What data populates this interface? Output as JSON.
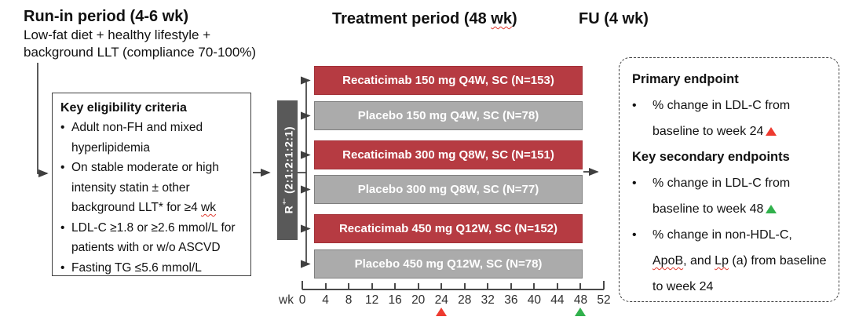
{
  "figure": {
    "runin": {
      "title": "Run-in period (4-6 wk)",
      "line1": "Low-fat diet + healthy lifestyle +",
      "line2": "background LLT (compliance 70-100%)"
    },
    "treatment_title_segments": [
      {
        "t": "Treatment period (48 "
      },
      {
        "t": "wk",
        "wavy": true
      },
      {
        "t": ")"
      }
    ],
    "fu_title": "FU (4 wk)"
  },
  "eligibility": {
    "title": "Key eligibility criteria",
    "bullets": [
      [
        {
          "t": "Adult non-FH and mixed hyperlipidemia"
        }
      ],
      [
        {
          "t": "On stable moderate or high intensity statin ± other background LLT* for ≥4 "
        },
        {
          "t": "wk",
          "wavy": true
        }
      ],
      [
        {
          "t": "LDL-C ≥1.8 or ≥2.6 mmol/L for patients with or w/o ASCVD"
        }
      ],
      [
        {
          "t": "Fasting TG ≤5.6 mmol/L"
        }
      ]
    ]
  },
  "randomization": {
    "prefix": "R",
    "sup": "†",
    "ratio": " (2:1:2:1:2:1)"
  },
  "arms": [
    {
      "label": "Recaticimab 150 mg Q4W, SC (N=153)",
      "type": "active"
    },
    {
      "label": "Placebo 150 mg Q4W, SC (N=78)",
      "type": "placebo"
    },
    {
      "label": "Recaticimab 300 mg Q8W, SC (N=151)",
      "type": "active"
    },
    {
      "label": "Placebo 300 mg Q8W, SC (N=77)",
      "type": "placebo"
    },
    {
      "label": "Recaticimab 450 mg Q12W, SC (N=152)",
      "type": "active"
    },
    {
      "label": "Placebo 450 mg Q12W, SC (N=78)",
      "type": "placebo"
    }
  ],
  "axis": {
    "unit_label": "wk",
    "ticks": [
      0,
      4,
      8,
      12,
      16,
      20,
      24,
      28,
      32,
      36,
      40,
      44,
      48,
      52
    ],
    "markers": [
      {
        "week": 24,
        "color_name": "red",
        "meaning": "primary endpoint week"
      },
      {
        "week": 48,
        "color_name": "green",
        "meaning": "key secondary endpoint week"
      }
    ]
  },
  "endpoints": {
    "primary_title": "Primary endpoint",
    "primary_items": [
      [
        {
          "t": "% change in LDL-C from baseline to week 24"
        },
        {
          "marker": "red"
        }
      ]
    ],
    "secondary_title": "Key secondary endpoints",
    "secondary_items": [
      [
        {
          "t": "% change in LDL-C from baseline to week 48"
        },
        {
          "marker": "green"
        }
      ],
      [
        {
          "t": "% change in non-HDL-C, "
        },
        {
          "t": "ApoB",
          "wavy": true
        },
        {
          "t": ", and "
        },
        {
          "t": "Lp",
          "wavy": true
        },
        {
          "t": " (a) from baseline to week 24"
        }
      ]
    ]
  },
  "colors": {
    "active_arm": "#b63b42",
    "placebo_arm": "#ababab",
    "randomization_bar": "#595959",
    "marker_red": "#ee3b30",
    "marker_green": "#31b14c"
  }
}
